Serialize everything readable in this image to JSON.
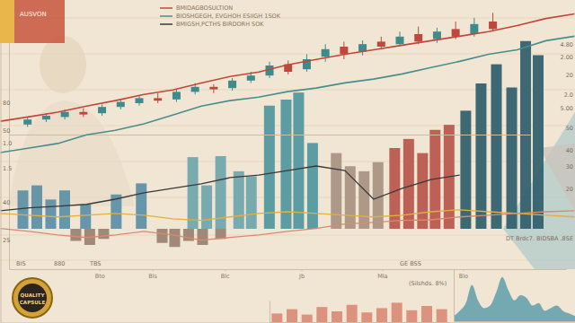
{
  "title": "AUSVON",
  "badge": [
    "QUALITY",
    "CAPSULE"
  ],
  "annotations": [
    "4.80",
    "2.00",
    "20",
    "2.0",
    "5.00",
    "50",
    "40",
    "30",
    "20",
    "80",
    "50",
    "1.0",
    "1.5",
    "40",
    "2S",
    "BIS",
    "880",
    "TBS",
    "GE BSS",
    "(Silshds. 8%)",
    "DT Brdc7. BIDSBA .8SE"
  ],
  "chart_data": [
    {
      "type": "candlestick",
      "x": [
        1,
        2,
        3,
        4,
        5,
        6,
        7,
        8,
        9,
        10,
        11,
        12,
        13,
        14,
        15,
        16,
        17,
        18,
        19,
        20,
        21,
        22,
        23,
        24,
        25,
        26
      ],
      "open": [
        8,
        12,
        14,
        18,
        17,
        22,
        25,
        29,
        28,
        34,
        38,
        37,
        43,
        47,
        56,
        52,
        62,
        70,
        66,
        74,
        72,
        80,
        76,
        84,
        80,
        90
      ],
      "high": [
        14,
        17,
        20,
        21,
        24,
        28,
        31,
        33,
        36,
        41,
        40,
        45,
        50,
        58,
        59,
        64,
        72,
        74,
        75,
        78,
        82,
        86,
        85,
        90,
        93,
        97
      ],
      "low": [
        6,
        10,
        12,
        14,
        15,
        20,
        23,
        25,
        26,
        32,
        33,
        35,
        41,
        45,
        48,
        50,
        58,
        60,
        63,
        68,
        70,
        72,
        73,
        76,
        78,
        82
      ],
      "close": [
        12,
        15,
        18,
        16,
        22,
        26,
        29,
        27,
        34,
        38,
        36,
        43,
        47,
        55,
        50,
        60,
        68,
        64,
        72,
        70,
        78,
        74,
        82,
        78,
        88,
        84
      ],
      "colors": [
        "#3f8a8c",
        "#3f8a8c",
        "#3f8a8c",
        "#c0473b",
        "#3f8a8c",
        "#3f8a8c",
        "#3f8a8c",
        "#c0473b",
        "#3f8a8c",
        "#3f8a8c",
        "#c0473b",
        "#3f8a8c",
        "#3f8a8c",
        "#3f8a8c",
        "#c0473b",
        "#3f8a8c",
        "#3f8a8c",
        "#c0473b",
        "#3f8a8c",
        "#c0473b",
        "#3f8a8c",
        "#c0473b",
        "#3f8a8c",
        "#c0473b",
        "#3f8a8c",
        "#c0473b"
      ],
      "xlim": [
        0,
        28
      ],
      "ylim": [
        0,
        100
      ],
      "tick_labels": false
    },
    {
      "type": "bar",
      "x": [
        1,
        2,
        3,
        4,
        5.5,
        7.7,
        9.5,
        13.2,
        14.2,
        15.2,
        16.5,
        17.4,
        18.7,
        19.9,
        20.8,
        21.8,
        23.5,
        24.5,
        25.5,
        26.5,
        27.7,
        28.7,
        29.7,
        30.6,
        31.6,
        32.8,
        33.9,
        35,
        36.1,
        37.1,
        38,
        4.8,
        5.8,
        6.8,
        11,
        11.9,
        12.9,
        13.9,
        15.2
      ],
      "values": [
        19,
        21.5,
        14.5,
        19,
        12,
        17,
        22.5,
        35.5,
        21.5,
        36,
        28.5,
        26,
        61,
        64,
        67.5,
        42.5,
        37.5,
        31,
        28.5,
        33,
        40,
        44.5,
        37.5,
        49,
        51.5,
        58.5,
        72,
        81.5,
        70,
        93,
        86,
        -6,
        -8,
        -5,
        -7,
        -9,
        -6,
        -8,
        -5
      ],
      "colors": [
        "#5b8fa6",
        "#5b8fa6",
        "#5b8fa6",
        "#5b8fa6",
        "#5b8fa6",
        "#5b8fa6",
        "#5b8fa6",
        "#6fa5ad",
        "#6fa5ad",
        "#6fa5ad",
        "#6fa5ad",
        "#6fa5ad",
        "#4f97a0",
        "#4f97a0",
        "#4f97a0",
        "#4f97a0",
        "#a89282",
        "#a89282",
        "#a89282",
        "#a89282",
        "#b9564b",
        "#b9564b",
        "#b9564b",
        "#b9564b",
        "#b9564b",
        "#2f5d6b",
        "#2f5d6b",
        "#2f5d6b",
        "#2f5d6b",
        "#2f5d6b",
        "#2f5d6b",
        "#9a8070",
        "#9a8070",
        "#9a8070",
        "#9a8070",
        "#9a8070",
        "#9a8070",
        "#9a8070",
        "#9a8070"
      ],
      "xlim": [
        0,
        40
      ],
      "ylim": [
        -20,
        100
      ],
      "xticks": [
        {
          "value": 6.5,
          "label": "Bto"
        },
        {
          "value": 10.3,
          "label": "Bls"
        },
        {
          "value": 15.5,
          "label": "Blc"
        },
        {
          "value": 21,
          "label": "Jb"
        },
        {
          "value": 26.8,
          "label": "Mla"
        },
        {
          "value": 32.6,
          "label": "Blo"
        }
      ],
      "tick_labels": "x"
    },
    {
      "type": "line",
      "x": [
        0,
        2,
        4,
        6,
        8,
        10,
        12,
        14,
        16,
        18,
        20,
        22,
        24,
        26,
        28,
        30,
        32,
        34,
        36,
        38,
        40
      ],
      "series": [
        {
          "name": "BMIDAGBOSULTION",
          "color": "#c0473b",
          "values": [
            62.5,
            63.9,
            65.3,
            67.2,
            68.9,
            70.8,
            72.2,
            74.4,
            76.4,
            77.8,
            80,
            81.7,
            83.3,
            84.7,
            86.1,
            87.5,
            88.9,
            90.3,
            92.2,
            94.4,
            95.8
          ]
        },
        {
          "name": "BIOSHGEGH, EVGHOH ESIIGH 1SOK",
          "color": "#4a8e8c",
          "values": [
            52.8,
            54.2,
            55.6,
            58.3,
            59.7,
            61.7,
            64.4,
            67.2,
            68.9,
            70,
            71.7,
            72.8,
            74.4,
            75.6,
            77.2,
            79.2,
            81.1,
            83.3,
            84.7,
            87.5,
            88.9
          ]
        },
        {
          "name": "BMIGSH,PCTHS BIRDORH SOK",
          "color": "#3a3a3a",
          "values": [
            34.7,
            35.6,
            36.1,
            36.7,
            38.3,
            40.3,
            41.7,
            43.1,
            45,
            45.8,
            47.2,
            48.6,
            47.2,
            38.3,
            41.7,
            44.4,
            45.8,
            null,
            null,
            null,
            null
          ]
        },
        {
          "color": "#e0b040",
          "values": [
            33.9,
            33.3,
            32.8,
            33.3,
            33.9,
            33.3,
            32.2,
            31.7,
            32.8,
            33.9,
            34.4,
            33.9,
            33.3,
            32.8,
            33.3,
            34.4,
            35,
            34.4,
            33.9,
            33.3,
            32.8
          ]
        },
        {
          "color": "#d88a70",
          "values": [
            29.2,
            28.3,
            27.2,
            26.4,
            27.2,
            28.3,
            27.2,
            25.6,
            26.4,
            27.2,
            28.3,
            29.2,
            30.6,
            31.1,
            31.7,
            31.9,
            32.8,
            33.3,
            33.9,
            34.4,
            34.7
          ]
        }
      ],
      "xlim": [
        0,
        40
      ],
      "ylim": [
        0,
        100
      ],
      "legend": "top",
      "tick_labels": false
    },
    {
      "type": "area",
      "x": [
        0,
        1,
        2,
        3,
        4,
        5,
        6,
        7,
        8,
        9,
        10,
        11,
        12,
        13,
        14,
        15,
        16,
        17,
        18,
        19,
        20
      ],
      "values": [
        10,
        20,
        35,
        70,
        40,
        25,
        30,
        55,
        85,
        60,
        40,
        50,
        45,
        30,
        35,
        20,
        25,
        30,
        20,
        15,
        10
      ],
      "color": "#5f9eaa",
      "xlim": [
        0,
        20
      ],
      "ylim": [
        0,
        100
      ],
      "tick_labels": false
    },
    {
      "type": "bar",
      "x": [
        0,
        1,
        2,
        3,
        4,
        5,
        6,
        7,
        8,
        9,
        10,
        11
      ],
      "values": [
        40,
        60,
        35,
        70,
        50,
        80,
        45,
        65,
        90,
        55,
        75,
        60
      ],
      "color": "#d9826e",
      "xlim": [
        -0.5,
        11.5
      ],
      "ylim": [
        0,
        100
      ],
      "tick_labels": false
    }
  ]
}
